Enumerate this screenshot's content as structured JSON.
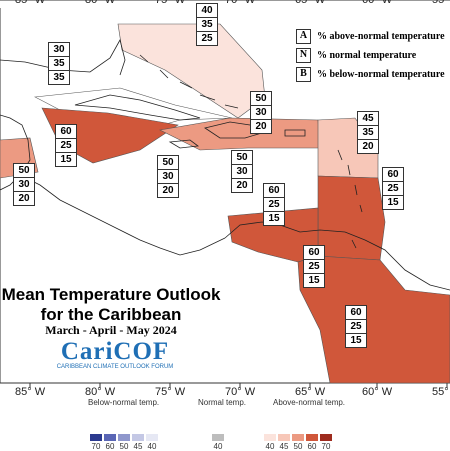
{
  "map": {
    "longitudes": [
      "85° W",
      "80° W",
      "75° W",
      "70° W",
      "65° W",
      "60° W",
      "55° W"
    ],
    "title_line1": "Mean Temperature Outlook",
    "title_line2": "for the Caribbean",
    "subtitle": "March - April - May 2024"
  },
  "key": [
    {
      "letter": "A",
      "text": "% above-normal temperature"
    },
    {
      "letter": "N",
      "text": "% normal temperature"
    },
    {
      "letter": "B",
      "text": "% below-normal temperature"
    }
  ],
  "boxes": [
    {
      "id": "bahamas",
      "values": [
        "40",
        "35",
        "25"
      ]
    },
    {
      "id": "cuba-west",
      "values": [
        "30",
        "35",
        "35"
      ]
    },
    {
      "id": "cayman",
      "values": [
        "60",
        "25",
        "15"
      ]
    },
    {
      "id": "belize",
      "values": [
        "50",
        "30",
        "20"
      ]
    },
    {
      "id": "jamaica",
      "values": [
        "50",
        "30",
        "20"
      ]
    },
    {
      "id": "hispaniola",
      "values": [
        "50",
        "30",
        "20"
      ]
    },
    {
      "id": "puerto-rico",
      "values": [
        "50",
        "30",
        "20"
      ]
    },
    {
      "id": "leeward",
      "values": [
        "45",
        "35",
        "20"
      ]
    },
    {
      "id": "windward",
      "values": [
        "60",
        "25",
        "15"
      ]
    },
    {
      "id": "abc",
      "values": [
        "60",
        "25",
        "15"
      ]
    },
    {
      "id": "trinidad",
      "values": [
        "60",
        "25",
        "15"
      ]
    },
    {
      "id": "guianas",
      "values": [
        "60",
        "25",
        "15"
      ]
    }
  ],
  "logo": {
    "name": "CariCOF",
    "tagline": "CARIBBEAN CLIMATE OUTLOOK FORUM"
  },
  "scale": {
    "below_label": "Below-normal temp.",
    "normal_label": "Normal temp.",
    "above_label": "Above-normal temp.",
    "below_ticks": [
      "70",
      "60",
      "50",
      "45",
      "40"
    ],
    "normal_ticks": [
      "40"
    ],
    "above_ticks": [
      "40",
      "45",
      "50",
      "60",
      "70"
    ]
  },
  "colors": {
    "above_40": "#fbe3dc",
    "above_45": "#f7c7b8",
    "above_50": "#ec9a82",
    "above_60": "#d0573a",
    "above_70": "#9e2b1e",
    "below_70": "#2b3a8f",
    "below_60": "#5a66b5",
    "below_50": "#8f97cc",
    "below_45": "#c4c8e5",
    "below_40": "#e6e8f4",
    "normal": "#bdbdbd"
  }
}
